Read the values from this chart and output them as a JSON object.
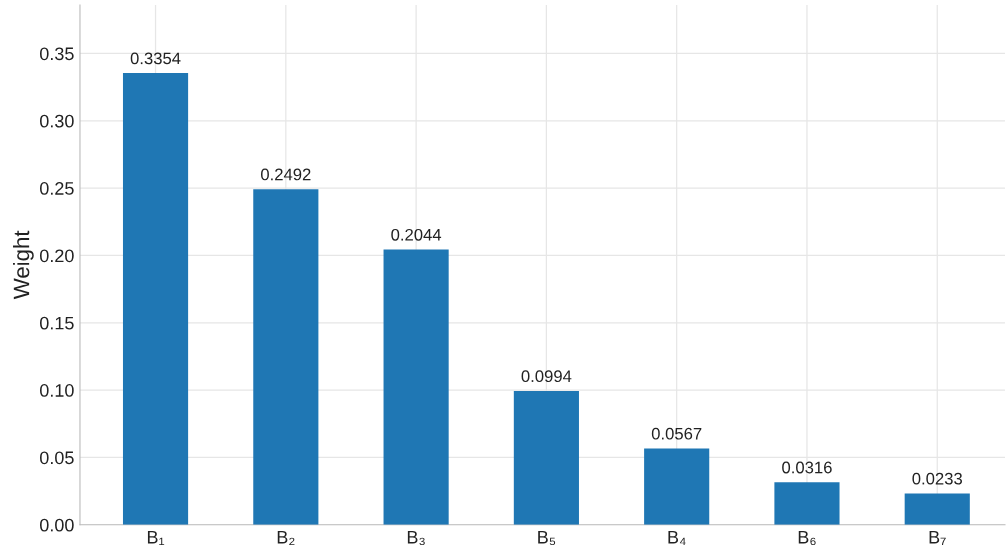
{
  "chart_data": {
    "type": "bar",
    "ylabel": "Weight",
    "categories": [
      "B₁",
      "B₂",
      "B₃",
      "B₅",
      "B₄",
      "B₆",
      "B₇"
    ],
    "values": [
      0.3354,
      0.2492,
      0.2044,
      0.0994,
      0.0567,
      0.0316,
      0.0233
    ],
    "color": "#1f77b4",
    "ylim": [
      0,
      0.386
    ],
    "yticks": [
      {
        "value": 0,
        "label": "0.00"
      },
      {
        "value": 0.05,
        "label": "0.05"
      },
      {
        "value": 0.1,
        "label": "0.10"
      },
      {
        "value": 0.15,
        "label": "0.15"
      },
      {
        "value": 0.2,
        "label": "0.20"
      },
      {
        "value": 0.25,
        "label": "0.25"
      },
      {
        "value": 0.3,
        "label": "0.30"
      },
      {
        "value": 0.35,
        "label": "0.35"
      }
    ],
    "grid": true,
    "data_labels": true
  }
}
